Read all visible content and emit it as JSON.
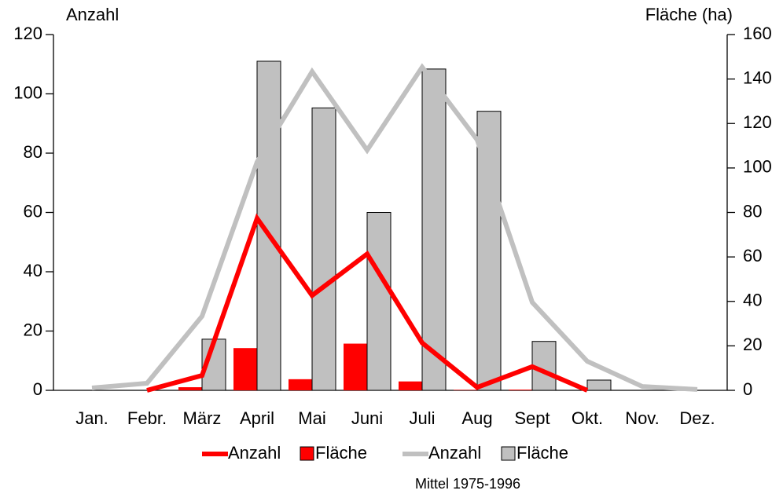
{
  "chart_data": {
    "type": "bar",
    "y_label": "Anzahl",
    "y2_label": "Fläche (ha)",
    "annotation": "Mittel 1975-1996",
    "categories": [
      "Jan.",
      "Febr.",
      "März",
      "April",
      "Mai",
      "Juni",
      "Juli",
      "Aug",
      "Sept",
      "Okt.",
      "Nov.",
      "Dez."
    ],
    "series": [
      {
        "name": "Anzahl",
        "color": "#ff0000",
        "type": "line",
        "axis": "y",
        "values": [
          null,
          0,
          5,
          58,
          32,
          46,
          16,
          1,
          8,
          0,
          null,
          null
        ]
      },
      {
        "name": "Fläche",
        "color": "#ff0000",
        "type": "bar",
        "axis": "y2",
        "values": [
          0,
          0,
          1.4,
          19,
          5,
          21,
          4,
          0.2,
          0.3,
          0,
          0,
          0
        ]
      },
      {
        "name": "Anzahl",
        "color": "#c0c0c0",
        "type": "line",
        "axis": "y",
        "values": [
          0.8,
          2.4,
          25,
          77,
          107.5,
          81,
          109,
          84.5,
          29.7,
          9.8,
          1.3,
          0.3
        ]
      },
      {
        "name": "Fläche",
        "color": "#c0c0c0",
        "type": "bar",
        "axis": "y2",
        "values": [
          0,
          0,
          23,
          148,
          127,
          80,
          144.5,
          125.5,
          22,
          4.6,
          0,
          0
        ]
      }
    ],
    "ylim": [
      0,
      120
    ],
    "yticks": [
      0,
      20,
      40,
      60,
      80,
      100,
      120
    ],
    "y2lim": [
      0,
      160
    ],
    "y2ticks": [
      0,
      20,
      40,
      60,
      80,
      100,
      120,
      140,
      160
    ],
    "grid": false
  }
}
